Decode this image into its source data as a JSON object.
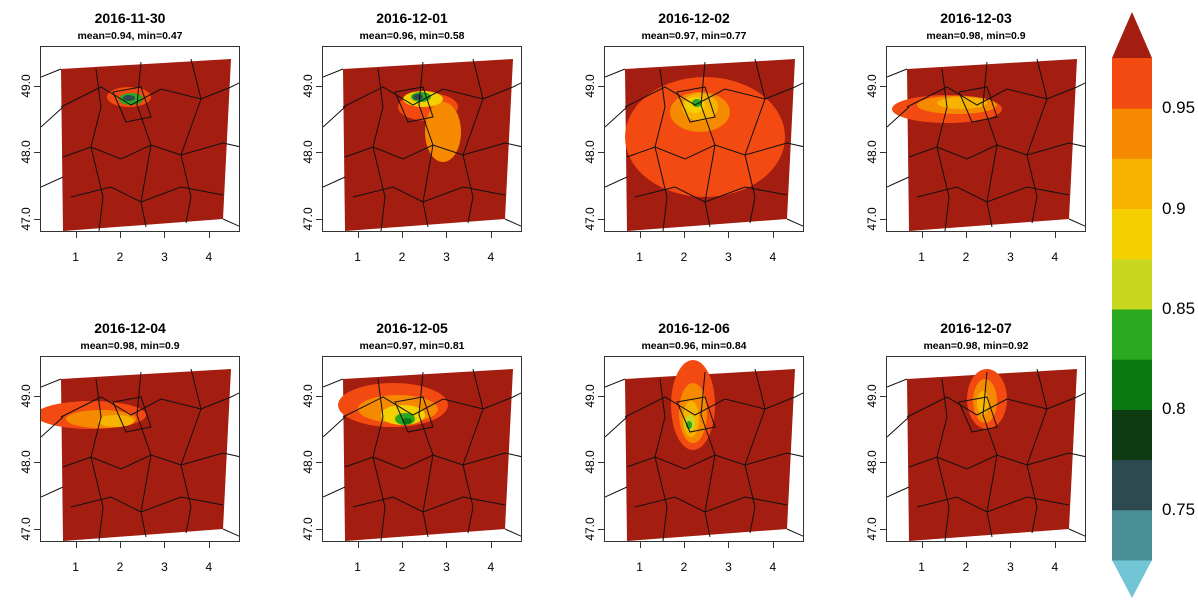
{
  "panels": [
    {
      "date": "2016-11-30",
      "stats": "mean=0.94, min=0.47"
    },
    {
      "date": "2016-12-01",
      "stats": "mean=0.96, min=0.58"
    },
    {
      "date": "2016-12-02",
      "stats": "mean=0.97, min=0.77"
    },
    {
      "date": "2016-12-03",
      "stats": "mean=0.98, min=0.9"
    },
    {
      "date": "2016-12-04",
      "stats": "mean=0.98, min=0.9"
    },
    {
      "date": "2016-12-05",
      "stats": "mean=0.97, min=0.81"
    },
    {
      "date": "2016-12-06",
      "stats": "mean=0.96, min=0.84"
    },
    {
      "date": "2016-12-07",
      "stats": "mean=0.98, min=0.92"
    }
  ],
  "axes": {
    "x_ticks": [
      "1",
      "2",
      "3",
      "4"
    ],
    "y_ticks": [
      "47.0",
      "48.0",
      "49.0"
    ]
  },
  "colorbar": {
    "labels": [
      "0.95",
      "0.9",
      "0.85",
      "0.8",
      "0.75"
    ],
    "colors": [
      "#72c5d4",
      "#4a8f96",
      "#2d4a50",
      "#0f3b12",
      "#0a7a10",
      "#2aa820",
      "#c8d81e",
      "#f5d000",
      "#f6b400",
      "#f58a00",
      "#f24a10",
      "#a31d10"
    ]
  },
  "map": {
    "field_color": "#a31d10",
    "hotspot_colors": [
      "#f24a10",
      "#f58a00",
      "#f6b400",
      "#f5d000",
      "#c8d81e",
      "#2aa820",
      "#0a7a10",
      "#2d4a50"
    ]
  }
}
